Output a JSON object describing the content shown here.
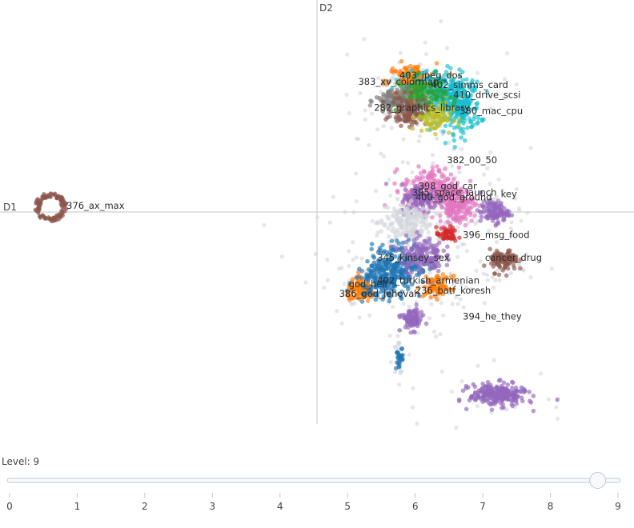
{
  "chart_data": {
    "type": "scatter",
    "title": "",
    "xlabel": "D1",
    "ylabel": "D2",
    "xlim": [
      -10,
      10
    ],
    "ylim": [
      -6.5,
      6.5
    ],
    "labels": [
      {
        "text": "403_jpeg_dos",
        "x": 2.6,
        "y": 4.1
      },
      {
        "text": "383_xv_colormap",
        "x": 1.3,
        "y": 3.9
      },
      {
        "text": "402_simms_card",
        "x": 3.6,
        "y": 3.8
      },
      {
        "text": "410_drive_scsi",
        "x": 4.3,
        "y": 3.5
      },
      {
        "text": "282_graphics_library",
        "x": 1.8,
        "y": 3.1
      },
      {
        "text": "380_mac_cpu",
        "x": 4.5,
        "y": 3.0
      },
      {
        "text": "382_00_50",
        "x": 4.1,
        "y": 1.5
      },
      {
        "text": "398_god_car",
        "x": 3.2,
        "y": 0.7
      },
      {
        "text": "395_space_launch",
        "x": 3.0,
        "y": 0.5
      },
      {
        "text": "400_god_ground",
        "x": 3.1,
        "y": 0.35
      },
      {
        "text": "key",
        "x": 5.8,
        "y": 0.45
      },
      {
        "text": "376_ax_max",
        "x": -7.9,
        "y": 0.1
      },
      {
        "text": "396_msg_food",
        "x": 4.6,
        "y": -0.8
      },
      {
        "text": "345_kinsey_sex",
        "x": 1.9,
        "y": -1.5
      },
      {
        "text": "cancer_drug",
        "x": 5.3,
        "y": -1.5
      },
      {
        "text": "402_turkish_armenian",
        "x": 1.9,
        "y": -2.2
      },
      {
        "text": "god_hell",
        "x": 1.0,
        "y": -2.3
      },
      {
        "text": "386_god_jehovah",
        "x": 0.7,
        "y": -2.6
      },
      {
        "text": "236_batf_koresh",
        "x": 3.1,
        "y": -2.5
      },
      {
        "text": "394_he_they",
        "x": 4.6,
        "y": -3.3
      }
    ],
    "clusters": [
      {
        "x": 3.0,
        "y": 4.0,
        "rx": 0.7,
        "ry": 0.5,
        "n": 160,
        "color": "#ff7f0e"
      },
      {
        "x": 3.8,
        "y": 3.7,
        "rx": 0.9,
        "ry": 0.6,
        "n": 220,
        "color": "#17becf"
      },
      {
        "x": 4.5,
        "y": 3.2,
        "rx": 0.6,
        "ry": 0.7,
        "n": 200,
        "color": "#17becf"
      },
      {
        "x": 3.3,
        "y": 3.6,
        "rx": 0.7,
        "ry": 0.5,
        "n": 150,
        "color": "#2ca02c"
      },
      {
        "x": 2.4,
        "y": 3.4,
        "rx": 0.5,
        "ry": 0.4,
        "n": 100,
        "color": "#7f7f7f"
      },
      {
        "x": 2.9,
        "y": 3.1,
        "rx": 0.5,
        "ry": 0.4,
        "n": 110,
        "color": "#8c564b"
      },
      {
        "x": 3.7,
        "y": 2.9,
        "rx": 0.5,
        "ry": 0.4,
        "n": 90,
        "color": "#bcbd22"
      },
      {
        "x": 3.6,
        "y": 0.7,
        "rx": 0.8,
        "ry": 0.6,
        "n": 220,
        "color": "#e377c2"
      },
      {
        "x": 3.3,
        "y": 0.4,
        "rx": 0.6,
        "ry": 0.4,
        "n": 120,
        "color": "#9467bd"
      },
      {
        "x": 4.4,
        "y": 0.2,
        "rx": 0.5,
        "ry": 0.5,
        "n": 160,
        "color": "#e377c2"
      },
      {
        "x": 5.6,
        "y": 0.0,
        "rx": 0.4,
        "ry": 0.3,
        "n": 110,
        "color": "#9467bd"
      },
      {
        "x": 2.8,
        "y": -0.3,
        "rx": 0.7,
        "ry": 0.6,
        "n": 150,
        "color": "#d3d6dc"
      },
      {
        "x": 4.1,
        "y": -0.7,
        "rx": 0.3,
        "ry": 0.2,
        "n": 50,
        "color": "#d62728"
      },
      {
        "x": 2.6,
        "y": -1.6,
        "rx": 0.8,
        "ry": 0.6,
        "n": 200,
        "color": "#1f77b4"
      },
      {
        "x": 3.3,
        "y": -1.3,
        "rx": 0.6,
        "ry": 0.5,
        "n": 150,
        "color": "#9467bd"
      },
      {
        "x": 5.9,
        "y": -1.5,
        "rx": 0.4,
        "ry": 0.3,
        "n": 100,
        "color": "#8c564b"
      },
      {
        "x": 1.4,
        "y": -2.4,
        "rx": 0.4,
        "ry": 0.3,
        "n": 110,
        "color": "#ff7f0e"
      },
      {
        "x": 2.0,
        "y": -2.1,
        "rx": 0.7,
        "ry": 0.5,
        "n": 150,
        "color": "#1f77b4"
      },
      {
        "x": 3.8,
        "y": -2.3,
        "rx": 0.4,
        "ry": 0.3,
        "n": 80,
        "color": "#ff7f0e"
      },
      {
        "x": 3.0,
        "y": -3.3,
        "rx": 0.3,
        "ry": 0.3,
        "n": 90,
        "color": "#9467bd"
      },
      {
        "x": 5.7,
        "y": -5.6,
        "rx": 0.8,
        "ry": 0.3,
        "n": 260,
        "color": "#9467bd"
      },
      {
        "x": 2.6,
        "y": -4.5,
        "rx": 0.1,
        "ry": 0.3,
        "n": 25,
        "color": "#1f77b4"
      }
    ],
    "rings": [
      {
        "x": -8.4,
        "y": 0.15,
        "r": 0.45,
        "n": 120,
        "color": "#8c564b"
      }
    ]
  },
  "slider": {
    "level_label": "Level: 9",
    "min": 0,
    "max": 9,
    "value": 8.7,
    "ticks": [
      "0",
      "1",
      "2",
      "3",
      "4",
      "5",
      "6",
      "7",
      "8",
      "9"
    ]
  }
}
